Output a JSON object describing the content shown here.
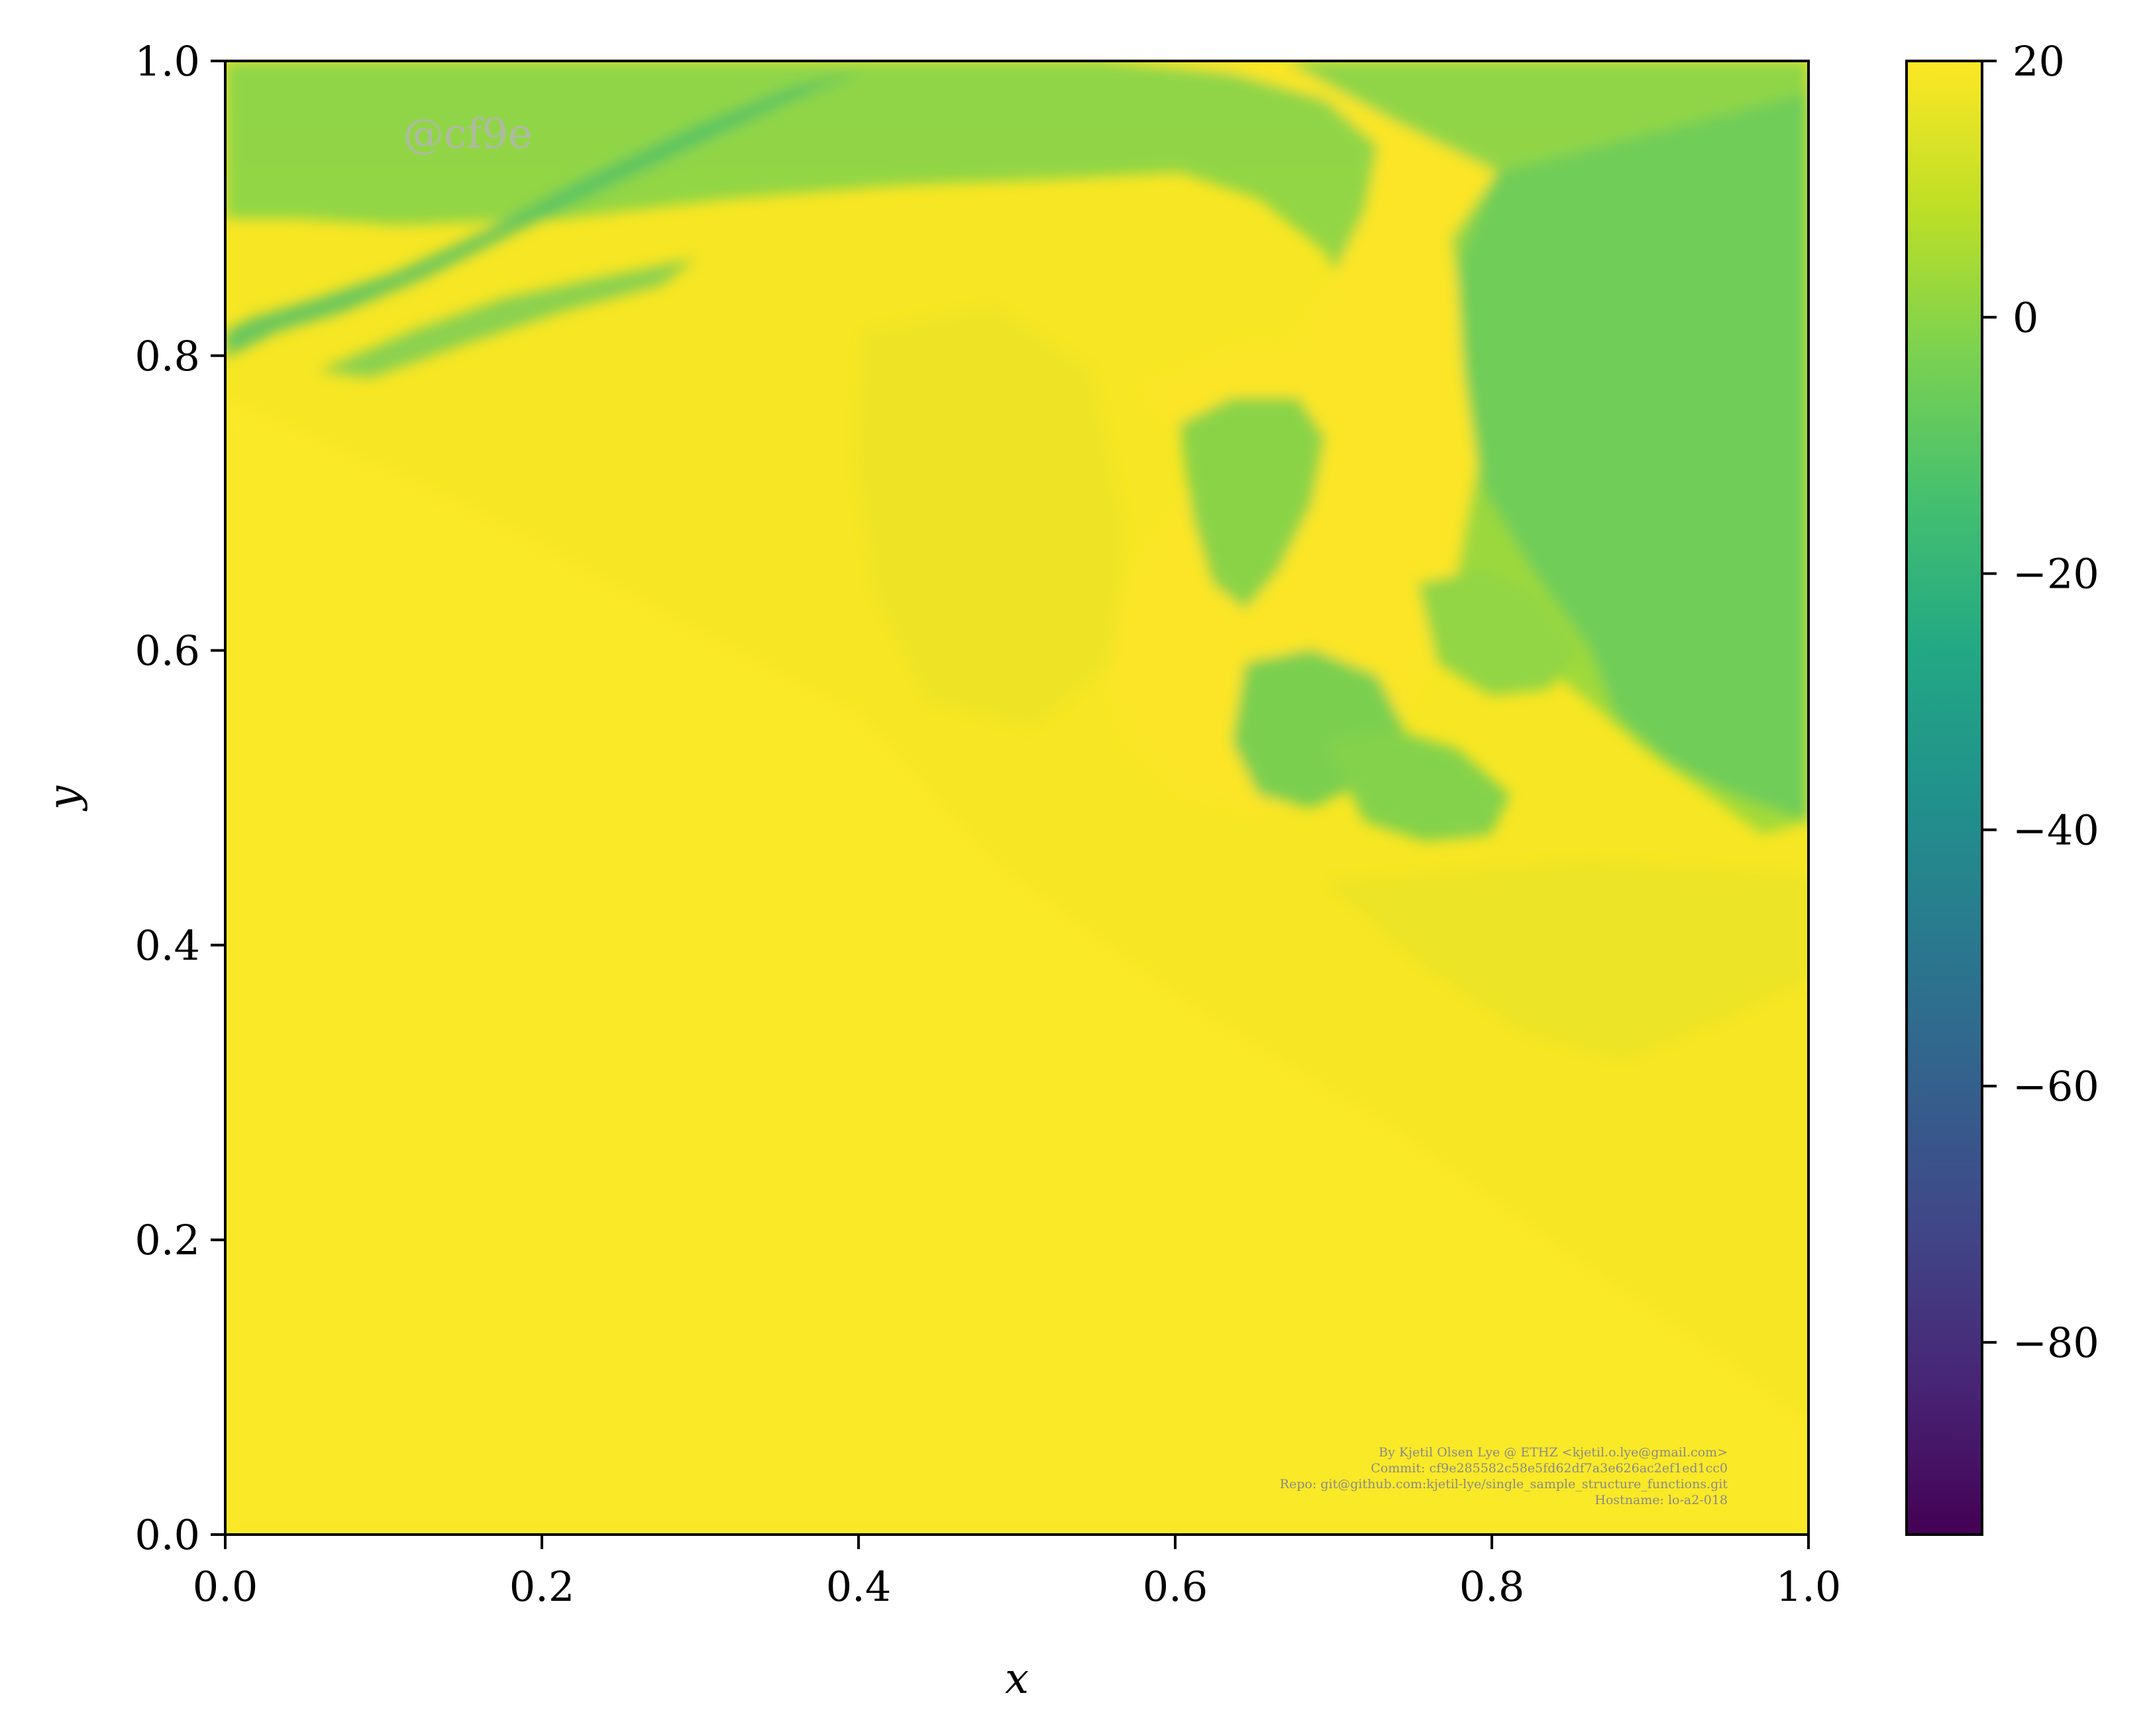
{
  "chart_data": {
    "type": "heatmap",
    "title": "",
    "xlabel": "x",
    "ylabel": "y",
    "xlim": [
      0.0,
      1.0
    ],
    "ylim": [
      0.0,
      1.0
    ],
    "xticks": [
      "0.0",
      "0.2",
      "0.4",
      "0.6",
      "0.8",
      "1.0"
    ],
    "yticks": [
      "0.0",
      "0.2",
      "0.4",
      "0.6",
      "0.8",
      "1.0"
    ],
    "xtick_values": [
      0.0,
      0.2,
      0.4,
      0.6,
      0.8,
      1.0
    ],
    "ytick_values": [
      0.0,
      0.2,
      0.4,
      0.6,
      0.8,
      1.0
    ],
    "colormap": "viridis",
    "colorbar": {
      "vmin": -95,
      "vmax": 20,
      "ticks": [
        20,
        0,
        -20,
        -40,
        -60,
        -80
      ],
      "tick_labels": [
        "20",
        "0",
        "−20",
        "−40",
        "−60",
        "−80"
      ]
    },
    "grid": false,
    "field_description_values": {
      "lower_region_value": 18,
      "upper_region_value": 3,
      "min_visible_value": -15
    }
  },
  "annotations": {
    "watermark": "@cf9e",
    "credits": [
      "By Kjetil Olsen Lye @ ETHZ <kjetil.o.lye@gmail.com>",
      "Commit: cf9e285582c58e5fd62df7a3e626ac2ef1ed1cc0",
      "Repo: git@github.com:kjetil-lye/single_sample_structure_functions.git",
      "Hostname: lo-a2-018"
    ]
  },
  "colors": {
    "viridis_yellow": "#fde725",
    "viridis_green": "#7ad151",
    "viridis_teal": "#22a884",
    "viridis_blue": "#2a788e",
    "viridis_indigo": "#414487",
    "viridis_purple": "#440154"
  }
}
